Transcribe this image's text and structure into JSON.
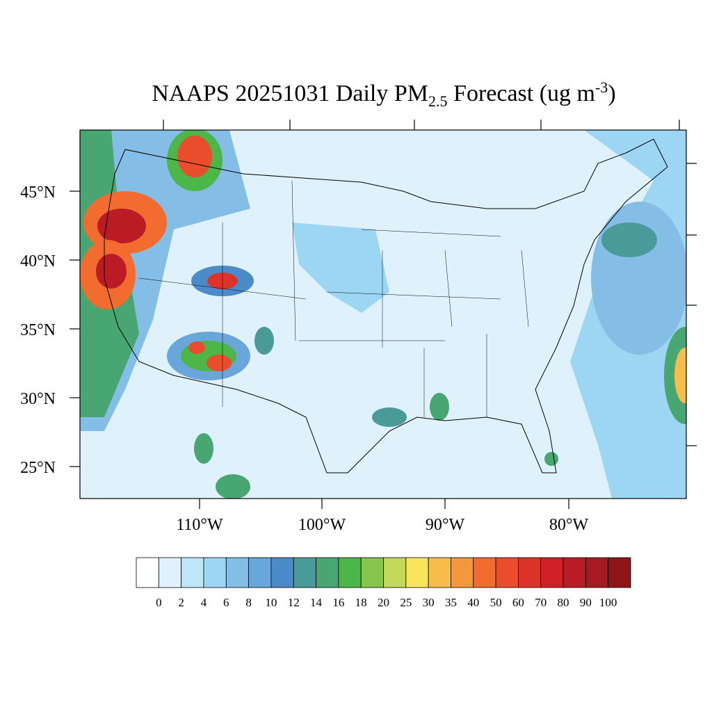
{
  "title": {
    "text": "NAAPS 20251031 Daily PM",
    "subscript": "2.5",
    "middle": " Forecast (ug m",
    "superscript": "-3",
    "end": ")"
  },
  "lat_labels": [
    "45°N",
    "40°N",
    "35°N",
    "30°N",
    "25°N"
  ],
  "lon_labels": [
    "110°W",
    "100°W",
    "90°W",
    "80°W"
  ],
  "colorbar": {
    "colors": [
      "#ffffff",
      "#dff2fb",
      "#bfe6f7",
      "#9dd6f3",
      "#84bde6",
      "#69a7da",
      "#4b8bc9",
      "#4a9a9a",
      "#48a672",
      "#4cb649",
      "#86c54e",
      "#c3d95a",
      "#f7e65a",
      "#f8bd49",
      "#f6963d",
      "#f26b2f",
      "#e94d2d",
      "#de3328",
      "#d12028",
      "#bb1b25",
      "#a71a22",
      "#8e1519"
    ],
    "labels": [
      0,
      2,
      4,
      6,
      8,
      10,
      12,
      14,
      16,
      18,
      20,
      25,
      30,
      35,
      40,
      50,
      60,
      70,
      80,
      90,
      100
    ]
  }
}
